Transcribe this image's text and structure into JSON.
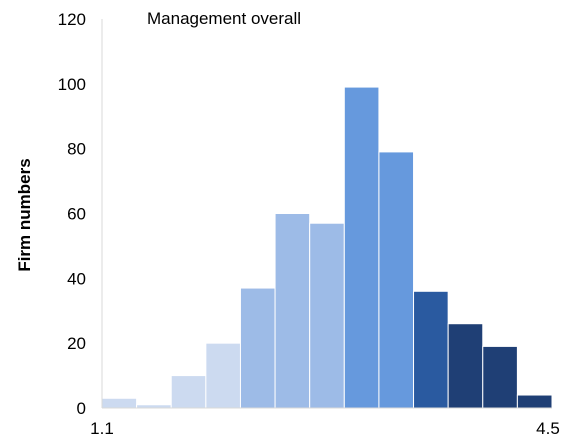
{
  "chart_data": {
    "type": "bar",
    "title": "Management overall",
    "ylabel": "Firm numbers",
    "xlabel": "",
    "ylim": [
      0,
      120
    ],
    "yticks": [
      0,
      20,
      40,
      60,
      80,
      100,
      120
    ],
    "xtick_labels": [
      "1.1",
      "4.5"
    ],
    "grid": false,
    "values": [
      3,
      1,
      10,
      20,
      37,
      60,
      57,
      99,
      79,
      36,
      26,
      19,
      4
    ],
    "bar_colors": [
      "#ccdaf0",
      "#ccdaf0",
      "#ccdaf0",
      "#ccdaf0",
      "#9dbbe7",
      "#9dbbe7",
      "#9dbbe7",
      "#6699dd",
      "#6699dd",
      "#2a5aa0",
      "#1f3f75",
      "#1f3f75",
      "#1f3f75"
    ]
  }
}
